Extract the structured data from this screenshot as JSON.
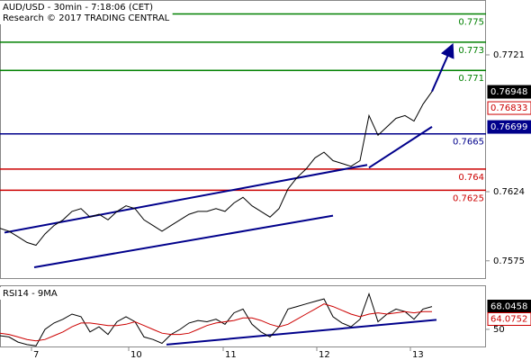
{
  "chart_data": [
    {
      "type": "line",
      "title": "AUD/USD - 30min - 7:18:06 (CET)",
      "subtitle": "Research © 2017 TRADING CENTRAL",
      "x": [
        0,
        2,
        4,
        6,
        8,
        10,
        12,
        14,
        16,
        18,
        20,
        22,
        24,
        26,
        28,
        30,
        32,
        34,
        36,
        38,
        40,
        42,
        44,
        46,
        48,
        50,
        52,
        54,
        56,
        58,
        60,
        62,
        64,
        66,
        68,
        70,
        72,
        74,
        76,
        78,
        80,
        82,
        84,
        86,
        88,
        90,
        92,
        94,
        96
      ],
      "series": [
        {
          "color": "#000000",
          "values": [
            0.7598,
            0.7596,
            0.7592,
            0.7588,
            0.7586,
            0.7594,
            0.76,
            0.7604,
            0.761,
            0.7612,
            0.7606,
            0.7608,
            0.7604,
            0.761,
            0.7614,
            0.7612,
            0.7604,
            0.76,
            0.7596,
            0.76,
            0.7604,
            0.7608,
            0.761,
            0.761,
            0.7612,
            0.761,
            0.7616,
            0.762,
            0.7614,
            0.761,
            0.7606,
            0.7612,
            0.7626,
            0.7634,
            0.764,
            0.7648,
            0.7652,
            0.7646,
            0.7644,
            0.7642,
            0.7646,
            0.7678,
            0.7664,
            0.767,
            0.7676,
            0.7678,
            0.7674,
            0.7686,
            0.7695
          ]
        }
      ],
      "xlim": [
        0,
        108
      ],
      "ylim": [
        0.75621,
        0.77599
      ],
      "xticks": [
        7,
        {
          "value": 28.6,
          "label": "10"
        },
        {
          "value": 49.6,
          "label": "11"
        },
        {
          "value": 70.4,
          "label": "12"
        },
        {
          "value": 91.2,
          "label": "13"
        }
      ],
      "yticks": [
        0.7721,
        0.7624,
        0.7575
      ],
      "levels": [
        {
          "value": 0.775,
          "color": "#008000"
        },
        {
          "value": 0.773,
          "color": "#008000"
        },
        {
          "value": 0.771,
          "color": "#008000"
        },
        {
          "value": 0.7665,
          "color": "#00008b"
        },
        {
          "value": 0.764,
          "color": "#cc0000"
        },
        {
          "value": 0.7625,
          "color": "#cc0000"
        }
      ],
      "trendlines": [
        {
          "start": [
            1,
            0.7595
          ],
          "end": [
            81.6,
            0.7643
          ],
          "color": "#00008b"
        },
        {
          "start": [
            7.6,
            0.75704
          ],
          "end": [
            74,
            0.7607
          ],
          "color": "#00008b"
        },
        {
          "start": [
            82,
            0.7641
          ],
          "end": [
            96,
            0.767
          ],
          "color": "#00008b"
        },
        {
          "start": [
            96,
            0.7695
          ],
          "end": [
            100.4,
            0.7727
          ],
          "color": "#00008b",
          "arrow": true
        }
      ],
      "price_tags": [
        {
          "value": 0.76948,
          "color": "#000000"
        },
        {
          "value": 0.76833,
          "color": "#cc0000"
        },
        {
          "value": 0.76699,
          "color": "#00008b"
        }
      ]
    },
    {
      "type": "line",
      "title": "RSI14 - 9MA",
      "x": [
        0,
        2,
        4,
        6,
        8,
        10,
        12,
        14,
        16,
        18,
        20,
        22,
        24,
        26,
        28,
        30,
        32,
        34,
        36,
        38,
        40,
        42,
        44,
        46,
        48,
        50,
        52,
        54,
        56,
        58,
        60,
        62,
        64,
        66,
        68,
        70,
        72,
        74,
        76,
        78,
        80,
        82,
        84,
        86,
        88,
        90,
        92,
        94,
        96
      ],
      "series": [
        {
          "color": "#000000",
          "values": [
            45,
            44,
            40,
            38,
            37,
            50,
            55,
            58,
            62,
            60,
            48,
            52,
            46,
            56,
            60,
            56,
            44,
            42,
            39,
            46,
            50,
            55,
            57,
            56,
            58,
            54,
            63,
            66,
            54,
            48,
            44,
            52,
            66,
            68,
            70,
            72,
            74,
            60,
            55,
            52,
            58,
            78,
            56,
            62,
            66,
            64,
            58,
            66,
            68
          ]
        },
        {
          "color": "#cc0000",
          "values": [
            47,
            46,
            44,
            42,
            41,
            42,
            45,
            48,
            52,
            55,
            55,
            54,
            53,
            53,
            54,
            56,
            53,
            50,
            47,
            46,
            46,
            47,
            50,
            53,
            55,
            56,
            57,
            59,
            59,
            57,
            54,
            52,
            54,
            58,
            62,
            66,
            70,
            68,
            65,
            62,
            60,
            62,
            63,
            62,
            63,
            64,
            63,
            64,
            64
          ]
        }
      ],
      "xlim": [
        0,
        108
      ],
      "ylim": [
        36.5,
        84
      ],
      "yticks": [
        50
      ],
      "trendlines": [
        {
          "start": [
            37,
            38
          ],
          "end": [
            97,
            57.5
          ],
          "color": "#00008b"
        }
      ],
      "price_tags": [
        {
          "value": 68.0458,
          "color": "#000000"
        },
        {
          "value": 64.0752,
          "color": "#cc0000"
        }
      ]
    }
  ]
}
